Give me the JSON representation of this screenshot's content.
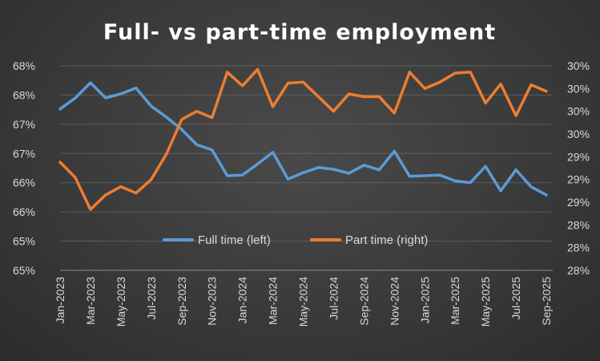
{
  "chart_data": {
    "type": "line",
    "title": "Full- vs part-time employment",
    "x": [
      "Jan-2023",
      "Feb-2023",
      "Mar-2023",
      "Apr-2023",
      "May-2023",
      "Jun-2023",
      "Jul-2023",
      "Aug-2023",
      "Sep-2023",
      "Oct-2023",
      "Nov-2023",
      "Dec-2023",
      "Jan-2024",
      "Feb-2024",
      "Mar-2024",
      "Apr-2024",
      "May-2024",
      "Jun-2024",
      "Jul-2024",
      "Aug-2024",
      "Sep-2024",
      "Oct-2024",
      "Nov-2024",
      "Dec-2024",
      "Jan-2025",
      "Feb-2025",
      "Mar-2025",
      "Apr-2025",
      "May-2025",
      "Jun-2025",
      "Jul-2025",
      "Aug-2025",
      "Sep-2025"
    ],
    "x_tick_labels": [
      "Jan-2023",
      "Mar-2023",
      "May-2023",
      "Jul-2023",
      "Sep-2023",
      "Nov-2023",
      "Jan-2024",
      "Mar-2024",
      "May-2024",
      "Jul-2024",
      "Sep-2024",
      "Nov-2024",
      "Jan-2025",
      "Mar-2025",
      "May-2025",
      "Jul-2025",
      "Sep-2025"
    ],
    "y_left_ticks": [
      "65%",
      "65%",
      "66%",
      "66%",
      "67%",
      "67%",
      "68%",
      "68%"
    ],
    "y_right_ticks": [
      "28%",
      "28%",
      "28%",
      "29%",
      "29%",
      "29%",
      "30%",
      "30%",
      "30%",
      "30%"
    ],
    "y_left_lim": [
      65.0,
      68.5
    ],
    "y_right_lim": [
      28.0,
      30.25
    ],
    "legend_position": "inside-bottom-center",
    "grid": true,
    "series": [
      {
        "name": "Full time (left)",
        "axis": "left",
        "color": "#5b9bd5",
        "values": [
          67.76,
          67.95,
          68.21,
          67.95,
          68.02,
          68.12,
          67.81,
          67.62,
          67.41,
          67.15,
          67.06,
          66.62,
          66.63,
          66.82,
          67.02,
          66.56,
          66.67,
          66.76,
          66.73,
          66.66,
          66.8,
          66.72,
          67.04,
          66.61,
          66.62,
          66.63,
          66.53,
          66.5,
          66.78,
          66.36,
          66.72,
          66.43,
          66.29
        ]
      },
      {
        "name": "Part time (right)",
        "axis": "right",
        "color": "#ed7d31",
        "values": [
          29.19,
          29.02,
          28.67,
          28.83,
          28.92,
          28.85,
          29.0,
          29.28,
          29.66,
          29.75,
          29.68,
          30.18,
          30.03,
          30.21,
          29.8,
          30.06,
          30.07,
          29.91,
          29.75,
          29.94,
          29.91,
          29.91,
          29.73,
          30.18,
          30.0,
          30.07,
          30.17,
          30.18,
          29.84,
          30.05,
          29.7,
          30.04,
          29.97
        ]
      }
    ]
  }
}
